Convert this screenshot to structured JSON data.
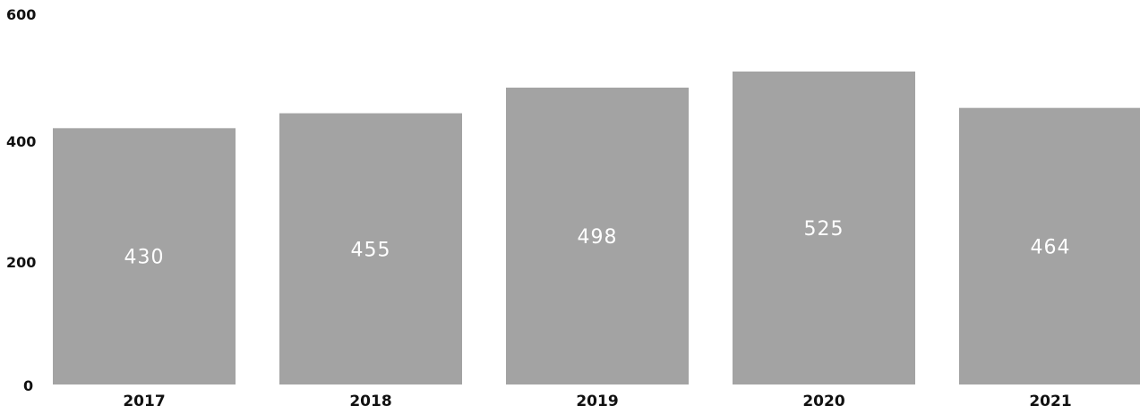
{
  "chart_data": {
    "type": "bar",
    "categories": [
      "2017",
      "2018",
      "2019",
      "2020",
      "2021"
    ],
    "values": [
      430,
      455,
      498,
      525,
      464
    ],
    "value_labels": [
      "430",
      "455",
      "498",
      "525",
      "464"
    ],
    "yticks": [
      "0",
      "200",
      "400",
      "600"
    ],
    "ylim": [
      0,
      600
    ],
    "grid": false,
    "legend": "none",
    "bar_color": "#a3a3a3",
    "label_color": "#ffffff"
  }
}
